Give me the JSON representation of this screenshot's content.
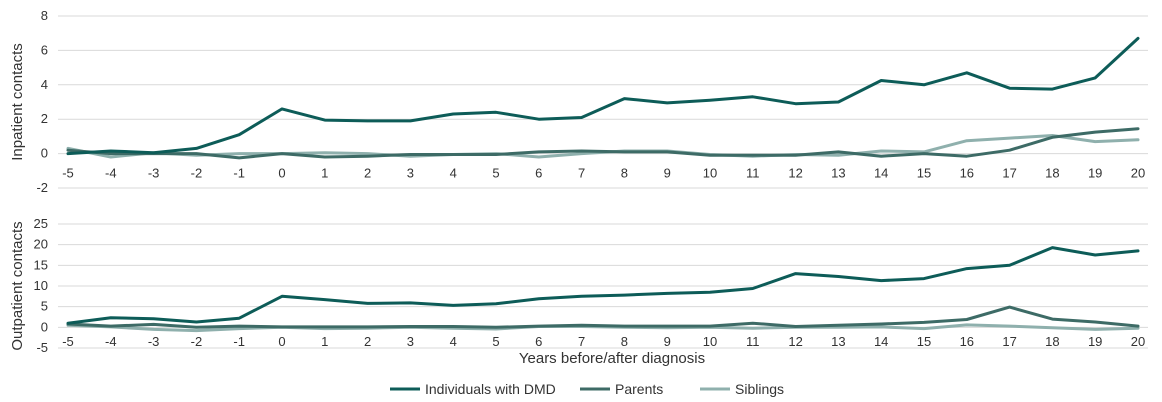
{
  "chart_data": [
    {
      "type": "line",
      "ylabel": "Inpatient contacts",
      "xlabel": "",
      "ylim": [
        -2,
        8
      ],
      "yticks": [
        -2,
        0,
        2,
        4,
        6,
        8
      ],
      "grid": true,
      "x": [
        -5,
        -4,
        -3,
        -2,
        -1,
        0,
        1,
        2,
        3,
        4,
        5,
        6,
        7,
        8,
        9,
        10,
        11,
        12,
        13,
        14,
        15,
        16,
        17,
        18,
        19,
        20
      ],
      "series": [
        {
          "name": "Individuals with DMD",
          "color": "#0d5c58",
          "values": [
            0.0,
            0.15,
            0.05,
            0.3,
            1.1,
            2.6,
            1.95,
            1.9,
            1.9,
            2.3,
            2.4,
            2.0,
            2.1,
            3.2,
            2.95,
            3.1,
            3.3,
            2.9,
            3.0,
            4.25,
            4.0,
            4.7,
            3.8,
            3.75,
            4.4,
            6.7
          ]
        },
        {
          "name": "Parents",
          "color": "#3d6b66",
          "values": [
            0.2,
            0.0,
            0.0,
            0.0,
            -0.25,
            0.0,
            -0.2,
            -0.15,
            -0.05,
            -0.05,
            -0.05,
            0.1,
            0.15,
            0.1,
            0.1,
            -0.1,
            -0.1,
            -0.1,
            0.1,
            -0.15,
            0.0,
            -0.15,
            0.2,
            0.95,
            1.25,
            1.45
          ]
        },
        {
          "name": "Siblings",
          "color": "#8fb0ad",
          "values": [
            0.3,
            -0.2,
            0.05,
            -0.1,
            0.0,
            0.0,
            0.05,
            0.0,
            -0.15,
            -0.05,
            0.0,
            -0.2,
            0.0,
            0.15,
            0.15,
            -0.05,
            -0.15,
            -0.05,
            -0.1,
            0.15,
            0.1,
            0.75,
            0.9,
            1.05,
            0.7,
            0.8
          ]
        }
      ]
    },
    {
      "type": "line",
      "ylabel": "Outpatient contacts",
      "xlabel": "Years before/after diagnosis",
      "ylim": [
        -5,
        25
      ],
      "yticks": [
        -5,
        0,
        5,
        10,
        15,
        20,
        25
      ],
      "grid": true,
      "x": [
        -5,
        -4,
        -3,
        -2,
        -1,
        0,
        1,
        2,
        3,
        4,
        5,
        6,
        7,
        8,
        9,
        10,
        11,
        12,
        13,
        14,
        15,
        16,
        17,
        18,
        19,
        20
      ],
      "series": [
        {
          "name": "Individuals with DMD",
          "color": "#0d5c58",
          "values": [
            1.0,
            2.3,
            2.1,
            1.3,
            2.2,
            7.5,
            6.7,
            5.8,
            5.9,
            5.3,
            5.7,
            6.9,
            7.5,
            7.8,
            8.2,
            8.5,
            9.4,
            13.0,
            12.3,
            11.3,
            11.8,
            14.2,
            15.0,
            19.3,
            17.5,
            18.5
          ]
        },
        {
          "name": "Parents",
          "color": "#3d6b66",
          "values": [
            0.8,
            0.3,
            0.7,
            0.0,
            0.3,
            0.1,
            0.1,
            0.1,
            0.2,
            0.2,
            0.0,
            0.3,
            0.5,
            0.3,
            0.3,
            0.3,
            1.0,
            0.2,
            0.5,
            0.8,
            1.2,
            1.9,
            4.9,
            2.0,
            1.3,
            0.3
          ]
        },
        {
          "name": "Siblings",
          "color": "#8fb0ad",
          "values": [
            0.5,
            0.1,
            -0.5,
            -0.8,
            -0.3,
            0.0,
            -0.3,
            -0.2,
            0.0,
            -0.2,
            -0.4,
            0.2,
            0.2,
            0.0,
            -0.1,
            0.0,
            -0.2,
            0.0,
            0.0,
            0.1,
            -0.3,
            0.6,
            0.3,
            -0.1,
            -0.5,
            -0.2
          ]
        }
      ]
    }
  ],
  "legend": {
    "placement": "bottom",
    "items": [
      {
        "label": "Individuals with DMD",
        "color": "#0d5c58"
      },
      {
        "label": "Parents",
        "color": "#3d6b66"
      },
      {
        "label": "Siblings",
        "color": "#8fb0ad"
      }
    ]
  }
}
